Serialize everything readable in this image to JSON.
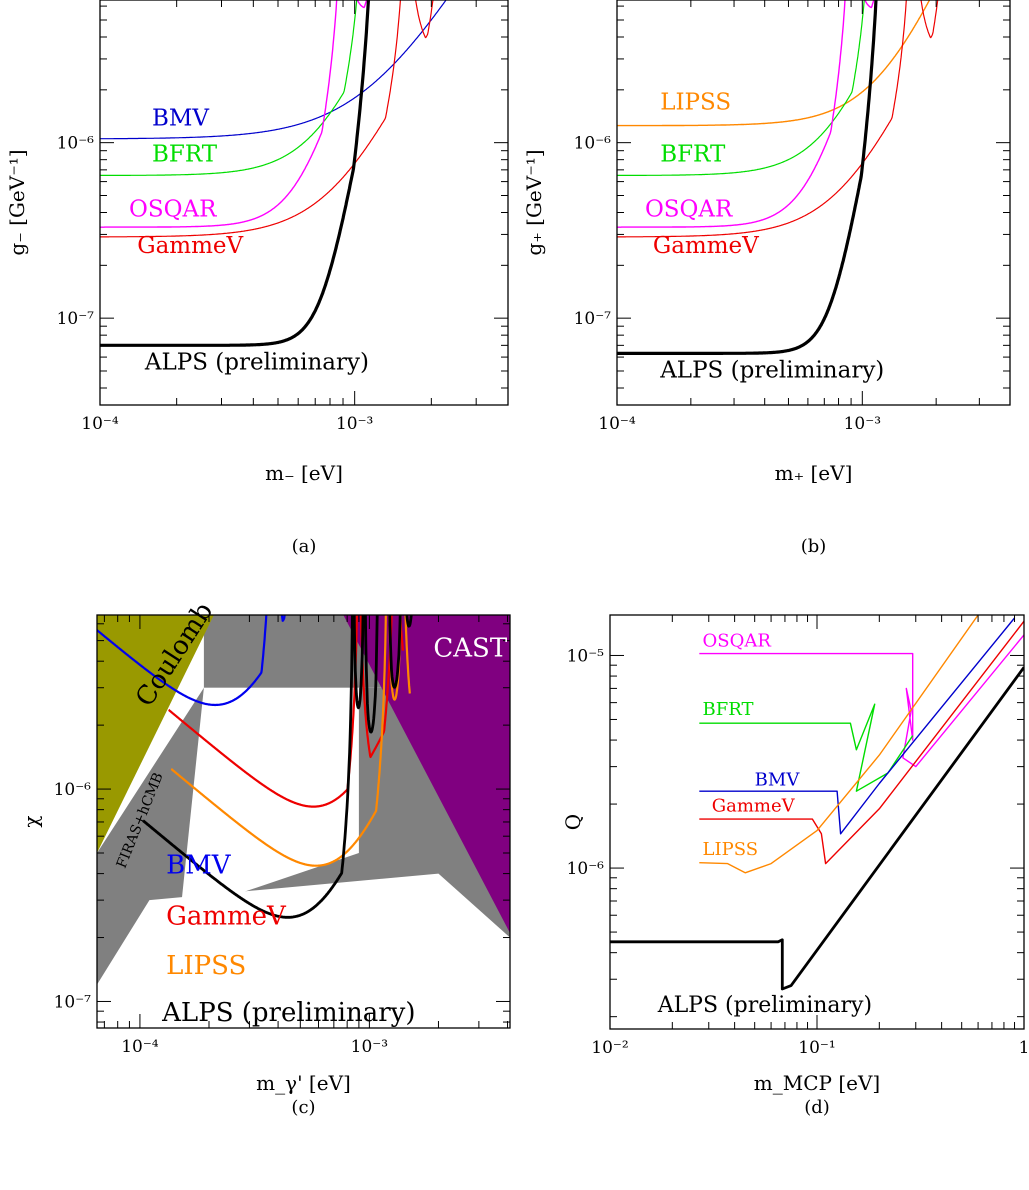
{
  "chart_data": [
    {
      "panel": "a",
      "type": "line",
      "caption": "(a)",
      "xlabel": "m₋ [eV]",
      "ylabel": "g₋ [GeV⁻¹]",
      "xscale": "log",
      "yscale": "log",
      "xlim": [
        0.0001,
        0.004
      ],
      "ylim": [
        3.2e-08,
        6.5e-06
      ],
      "xticks": [
        {
          "value": 0.0001,
          "label": "10⁻⁴"
        },
        {
          "value": 0.001,
          "label": "10⁻³"
        }
      ],
      "yticks": [
        {
          "value": 1e-07,
          "label": "10⁻⁷"
        },
        {
          "value": 1e-06,
          "label": "10⁻⁶"
        }
      ],
      "series": [
        {
          "name": "BMV",
          "color": "#0000cc",
          "width": 1.2,
          "base": 1.05e-06,
          "rise": 0.00115,
          "steep": 1.2,
          "peaks": []
        },
        {
          "name": "BFRT",
          "color": "#00dd00",
          "width": 1.2,
          "base": 6.5e-07,
          "rise": 0.00075,
          "steep": 1.8,
          "peaks": [
            0.0011,
            0.0015,
            0.00195,
            0.0026,
            0.0034
          ]
        },
        {
          "name": "OSQAR",
          "color": "#ff00ff",
          "width": 1.4,
          "base": 3.3e-07,
          "rise": 0.00062,
          "steep": 2.5,
          "peaks": [
            0.0009,
            0.00135,
            0.00185,
            0.0025,
            0.0032
          ]
        },
        {
          "name": "GammeV",
          "color": "#ee0000",
          "width": 1.2,
          "base": 2.9e-07,
          "rise": 0.00085,
          "steep": 1.5,
          "peaks": [
            0.0016,
            0.0023,
            0.003,
            0.0037
          ]
        },
        {
          "name": "ALPS (preliminary)",
          "color": "#000000",
          "width": 3.2,
          "base": 7e-08,
          "rise": 0.00075,
          "steep": 4,
          "peaks": [
            0.0012,
            0.0016,
            0.0019,
            0.0022,
            0.0025,
            0.0028,
            0.0031,
            0.0034,
            0.0037,
            0.004
          ]
        }
      ],
      "labels": [
        {
          "text": "BMV",
          "color": "#0000cc",
          "x": 0.00016,
          "y": 1.25e-06
        },
        {
          "text": "BFRT",
          "color": "#00dd00",
          "x": 0.00016,
          "y": 7.8e-07
        },
        {
          "text": "OSQAR",
          "color": "#ff00ff",
          "x": 0.00013,
          "y": 3.8e-07
        },
        {
          "text": "GammeV",
          "color": "#ee0000",
          "x": 0.00014,
          "y": 2.35e-07
        },
        {
          "text": "ALPS (preliminary)",
          "color": "#000000",
          "x": 0.00015,
          "y": 5.1e-08
        }
      ]
    },
    {
      "panel": "b",
      "type": "line",
      "caption": "(b)",
      "xlabel": "m₊ [eV]",
      "ylabel": "g₊ [GeV⁻¹]",
      "xscale": "log",
      "yscale": "log",
      "xlim": [
        0.0001,
        0.004
      ],
      "ylim": [
        3.2e-08,
        6.5e-06
      ],
      "xticks": [
        {
          "value": 0.0001,
          "label": "10⁻⁴"
        },
        {
          "value": 0.001,
          "label": "10⁻³"
        }
      ],
      "yticks": [
        {
          "value": 1e-07,
          "label": "10⁻⁷"
        },
        {
          "value": 1e-06,
          "label": "10⁻⁶"
        }
      ],
      "series": [
        {
          "name": "LIPSS",
          "color": "#ff8800",
          "width": 1.4,
          "base": 1.25e-06,
          "rise": 0.0012,
          "steep": 1.6,
          "peaks": []
        },
        {
          "name": "BFRT",
          "color": "#00dd00",
          "width": 1.2,
          "base": 6.5e-07,
          "rise": 0.00075,
          "steep": 1.8,
          "peaks": [
            0.0011,
            0.0015,
            0.00195,
            0.0026,
            0.0034
          ]
        },
        {
          "name": "OSQAR",
          "color": "#ff00ff",
          "width": 1.4,
          "base": 3.3e-07,
          "rise": 0.00062,
          "steep": 2.5,
          "peaks": [
            0.0009,
            0.00135,
            0.00185,
            0.0025,
            0.0032
          ]
        },
        {
          "name": "GammeV",
          "color": "#ee0000",
          "width": 1.2,
          "base": 2.9e-07,
          "rise": 0.00085,
          "steep": 1.5,
          "peaks": [
            0.0016,
            0.0023,
            0.003,
            0.0037
          ]
        },
        {
          "name": "ALPS (preliminary)",
          "color": "#000000",
          "width": 3.2,
          "base": 6.3e-08,
          "rise": 0.00075,
          "steep": 4,
          "peaks": [
            0.0012,
            0.0016,
            0.0019,
            0.0022,
            0.0025,
            0.0028,
            0.0031,
            0.0034,
            0.0037,
            0.004
          ]
        }
      ],
      "labels": [
        {
          "text": "LIPSS",
          "color": "#ff8800",
          "x": 0.00015,
          "y": 1.55e-06
        },
        {
          "text": "BFRT",
          "color": "#00dd00",
          "x": 0.00015,
          "y": 7.8e-07
        },
        {
          "text": "OSQAR",
          "color": "#ff00ff",
          "x": 0.00013,
          "y": 3.8e-07
        },
        {
          "text": "GammeV",
          "color": "#ee0000",
          "x": 0.00014,
          "y": 2.35e-07
        },
        {
          "text": "ALPS (preliminary)",
          "color": "#000000",
          "x": 0.00015,
          "y": 4.6e-08
        }
      ]
    },
    {
      "panel": "c",
      "type": "line",
      "caption": "(c)",
      "xlabel": "m_γ' [eV]",
      "ylabel": "χ",
      "xscale": "log",
      "yscale": "log",
      "xlim": [
        6.5e-05,
        0.0041
      ],
      "ylim": [
        7.5e-08,
        6.6e-06
      ],
      "xticks": [
        {
          "value": 0.0001,
          "label": "10⁻⁴"
        },
        {
          "value": 0.001,
          "label": "10⁻³"
        }
      ],
      "yticks": [
        {
          "value": 1e-07,
          "label": "10⁻⁷"
        },
        {
          "value": 1e-06,
          "label": "10⁻⁶"
        }
      ],
      "regions": [
        {
          "name": "FIRAS+hCMB",
          "fill": "#808080",
          "points": [
            [
              6.5e-05,
              5e-07
            ],
            [
              0.00019,
              3e-06
            ],
            [
              0.0041,
              3e-06
            ],
            [
              0.0041,
              2e-07
            ],
            [
              0.002,
              4e-07
            ],
            [
              0.00011,
              3e-07
            ],
            [
              6.5e-05,
              1.2e-07
            ]
          ]
        },
        {
          "name": "FIRAS+hCMB (upper band)",
          "fill": "#808080",
          "points": [
            [
              0.00019,
              6.6e-06
            ],
            [
              0.0041,
              6.6e-06
            ],
            [
              0.0041,
              3e-06
            ],
            [
              0.00019,
              3e-06
            ]
          ]
        },
        {
          "name": "Coulomb",
          "fill": "#999900",
          "points": [
            [
              6.5e-05,
              6.6e-06
            ],
            [
              0.00021,
              6.6e-06
            ],
            [
              6.5e-05,
              5e-07
            ]
          ]
        },
        {
          "name": "CAST",
          "fill": "#800080",
          "points": [
            [
              0.00077,
              6.6e-06
            ],
            [
              0.0041,
              6.6e-06
            ],
            [
              0.0041,
              2.1e-07
            ]
          ]
        }
      ],
      "inner_white": {
        "points": [
          [
            0.00019,
            3e-06
          ],
          [
            0.0009,
            3e-06
          ],
          [
            0.0009,
            5e-07
          ],
          [
            0.00015,
            2.6e-07
          ]
        ]
      },
      "series": [
        {
          "name": "BMV",
          "color": "#0000ee",
          "width": 2.2,
          "min_x": 0.00028,
          "min_y": 2.8e-06,
          "peaks": [
            0.00038,
            0.00047,
            0.00056,
            0.00066,
            0.00076,
            0.00086,
            0.00096,
            0.0011,
            0.0012,
            0.0013
          ],
          "xmax": 0.0013
        },
        {
          "name": "GammeV",
          "color": "#ee0000",
          "width": 2.2,
          "min_x": 0.00075,
          "min_y": 9.3e-07,
          "peaks": [
            0.0009,
            0.0013
          ],
          "xmax": 0.0014
        },
        {
          "name": "LIPSS",
          "color": "#ff8800",
          "width": 2.2,
          "min_x": 0.00077,
          "min_y": 4.9e-07,
          "peaks": [
            0.0012,
            0.0014
          ],
          "xmax": 0.0015
        },
        {
          "name": "ALPS (preliminary)",
          "color": "#000000",
          "width": 2.8,
          "min_x": 0.00058,
          "min_y": 2.8e-07,
          "peaks": [
            0.00085,
            0.00095,
            0.0011,
            0.0012,
            0.0014,
            0.0016,
            0.0018,
            0.002,
            0.0023,
            0.0026,
            0.0029,
            0.0033,
            0.0037
          ],
          "xmax": 0.0041
        }
      ],
      "labels": [
        {
          "text": "BMV",
          "color": "#0000ee",
          "x": 0.00013,
          "y": 4e-07,
          "size": 26
        },
        {
          "text": "GammeV",
          "color": "#ee0000",
          "x": 0.00013,
          "y": 2.3e-07,
          "size": 26
        },
        {
          "text": "LIPSS",
          "color": "#ff8800",
          "x": 0.00013,
          "y": 1.35e-07,
          "size": 26
        },
        {
          "text": "ALPS (preliminary)",
          "color": "#000000",
          "x": 0.000125,
          "y": 8.1e-08,
          "size": 26
        },
        {
          "text": "Coulomb",
          "color": "#000000",
          "x": 0.00011,
          "y": 2.4e-06,
          "size": 26,
          "rotate": -57
        },
        {
          "text": "FIRAS+hCMB",
          "color": "#000000",
          "x": 8.6e-05,
          "y": 4.2e-07,
          "size": 14,
          "rotate": -68
        },
        {
          "text": "CAST",
          "color": "#ffffff",
          "x": 0.0019,
          "y": 4.2e-06,
          "size": 26
        }
      ]
    },
    {
      "panel": "d",
      "type": "line",
      "caption": "(d)",
      "xlabel": "m_MCP [eV]",
      "ylabel": "Q",
      "xscale": "log",
      "yscale": "log",
      "xlim": [
        0.01,
        1
      ],
      "ylim": [
        1.75e-07,
        1.55e-05
      ],
      "xticks": [
        {
          "value": 0.01,
          "label": "10⁻²"
        },
        {
          "value": 0.1,
          "label": "10⁻¹"
        },
        {
          "value": 1,
          "label": "1"
        }
      ],
      "yticks": [
        {
          "value": 1e-06,
          "label": "10⁻⁶"
        },
        {
          "value": 1e-05,
          "label": "10⁻⁵"
        }
      ],
      "series": [
        {
          "name": "OSQAR",
          "color": "#ff00ff",
          "width": 1.4,
          "points": [
            [
              0.027,
              1.02e-05
            ],
            [
              0.29,
              1.02e-05
            ],
            [
              0.29,
              4e-06
            ],
            [
              0.27,
              7e-06
            ],
            [
              0.285,
              5.5e-06
            ],
            [
              0.26,
              3.3e-06
            ],
            [
              0.3,
              3e-06
            ],
            [
              1,
              1.25e-05
            ]
          ]
        },
        {
          "name": "BFRT",
          "color": "#00dd00",
          "width": 1.4,
          "points": [
            [
              0.027,
              4.8e-06
            ],
            [
              0.145,
              4.8e-06
            ],
            [
              0.155,
              3.6e-06
            ],
            [
              0.19,
              5.9e-06
            ],
            [
              0.155,
              2.3e-06
            ],
            [
              0.22,
              2.8e-06
            ],
            [
              0.29,
              4.2e-06
            ]
          ]
        },
        {
          "name": "BMV",
          "color": "#0000cc",
          "width": 1.4,
          "points": [
            [
              0.027,
              2.3e-06
            ],
            [
              0.125,
              2.3e-06
            ],
            [
              0.13,
              1.45e-06
            ],
            [
              0.2,
              2.5e-06
            ],
            [
              0.9,
              1.5e-05
            ]
          ]
        },
        {
          "name": "GammeV",
          "color": "#ee0000",
          "width": 1.4,
          "points": [
            [
              0.027,
              1.7e-06
            ],
            [
              0.095,
              1.7e-06
            ],
            [
              0.105,
              1.45e-06
            ],
            [
              0.11,
              1.05e-06
            ],
            [
              0.2,
              1.9e-06
            ],
            [
              1,
              1.45e-05
            ]
          ]
        },
        {
          "name": "LIPSS",
          "color": "#ff8800",
          "width": 1.4,
          "points": [
            [
              0.027,
              1.06e-06
            ],
            [
              0.037,
              1.05e-06
            ],
            [
              0.045,
              9.5e-07
            ],
            [
              0.06,
              1.05e-06
            ],
            [
              0.1,
              1.5e-06
            ],
            [
              0.2,
              3.4e-06
            ],
            [
              0.6,
              1.55e-05
            ]
          ]
        },
        {
          "name": "ALPS (preliminary)",
          "color": "#000000",
          "width": 2.8,
          "points": [
            [
              0.01,
              4.5e-07
            ],
            [
              0.065,
              4.5e-07
            ],
            [
              0.068,
              4.6e-07
            ],
            [
              0.068,
              2.7e-07
            ],
            [
              0.075,
              2.8e-07
            ],
            [
              1,
              8.8e-06
            ]
          ]
        }
      ],
      "labels": [
        {
          "text": "OSQAR",
          "color": "#ff00ff",
          "x": 0.028,
          "y": 1.1e-05,
          "size": 18
        },
        {
          "text": "BFRT",
          "color": "#00dd00",
          "x": 0.028,
          "y": 5.25e-06,
          "size": 18
        },
        {
          "text": "BMV",
          "color": "#0000cc",
          "x": 0.05,
          "y": 2.45e-06,
          "size": 18
        },
        {
          "text": "GammeV",
          "color": "#ee0000",
          "x": 0.031,
          "y": 1.85e-06,
          "size": 18
        },
        {
          "text": "LIPSS",
          "color": "#ff8800",
          "x": 0.028,
          "y": 1.15e-06,
          "size": 18
        },
        {
          "text": "ALPS (preliminary)",
          "color": "#000000",
          "x": 0.017,
          "y": 2.1e-07,
          "size": 22
        }
      ]
    }
  ]
}
